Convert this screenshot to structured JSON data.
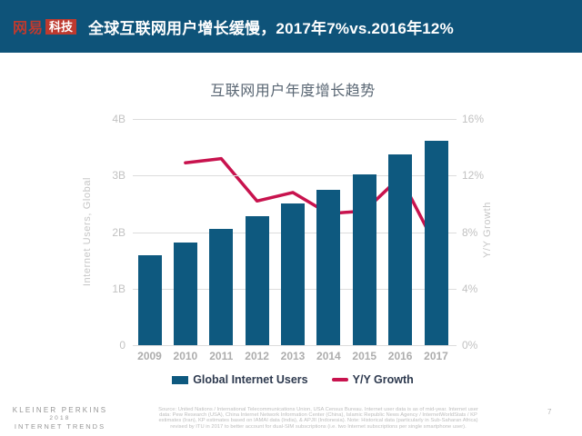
{
  "header": {
    "logo_brand": "网易",
    "logo_tech": "科技",
    "title": "全球互联网用户增长缓慢，2017年7%vs.2016年12%"
  },
  "chart_data": {
    "type": "bar",
    "title": "互联网用户年度增长趋势",
    "categories": [
      "2009",
      "2010",
      "2011",
      "2012",
      "2013",
      "2014",
      "2015",
      "2016",
      "2017"
    ],
    "series": [
      {
        "name": "Global Internet Users",
        "type": "bar",
        "axis": "left",
        "unit": "B",
        "color": "#0e597f",
        "values": [
          1.59,
          1.82,
          2.06,
          2.28,
          2.51,
          2.75,
          3.02,
          3.38,
          3.62
        ]
      },
      {
        "name": "Y/Y Growth",
        "type": "line",
        "axis": "right",
        "unit": "%",
        "color": "#c8134e",
        "values": [
          null,
          12.9,
          13.2,
          10.2,
          10.8,
          9.3,
          9.5,
          11.9,
          7.0
        ]
      }
    ],
    "left_axis": {
      "label": "Internet Users, Global",
      "ticks": [
        "4B",
        "3B",
        "2B",
        "1B",
        "0"
      ],
      "range": [
        0,
        4
      ]
    },
    "right_axis": {
      "label": "Y/Y Growth",
      "ticks": [
        "16%",
        "12%",
        "8%",
        "4%",
        "0%"
      ],
      "range": [
        0,
        16
      ]
    },
    "grid": true,
    "legend_position": "bottom"
  },
  "footer": {
    "brand_lines": [
      "KLEINER PERKINS",
      "2018",
      "INTERNET TRENDS"
    ],
    "source_lines": [
      "Source: United Nations / International Telecommunications Union, USA Census Bureau. Internet user data is as of mid-year. Internet user",
      "data: Pew Research (USA), China Internet Network Information Center (China), Islamic Republic News Agency / InternetWorldStats / KP",
      "estimates (Iran), KP estimates based on IAMAI data (India), & APJII (Indonesia). Note: Historical data (particularly in Sub-Saharan Africa)",
      "revised by ITU in 2017 to better account for dual-SIM subscriptions (i.e. two Internet subscriptions per single smartphone user)."
    ],
    "page_number": "7"
  },
  "colors": {
    "header_bg": "#0e5379",
    "logo_red": "#be3a2f",
    "bar": "#0e597f",
    "line": "#c8134e",
    "gridline": "#dcdcdc"
  }
}
